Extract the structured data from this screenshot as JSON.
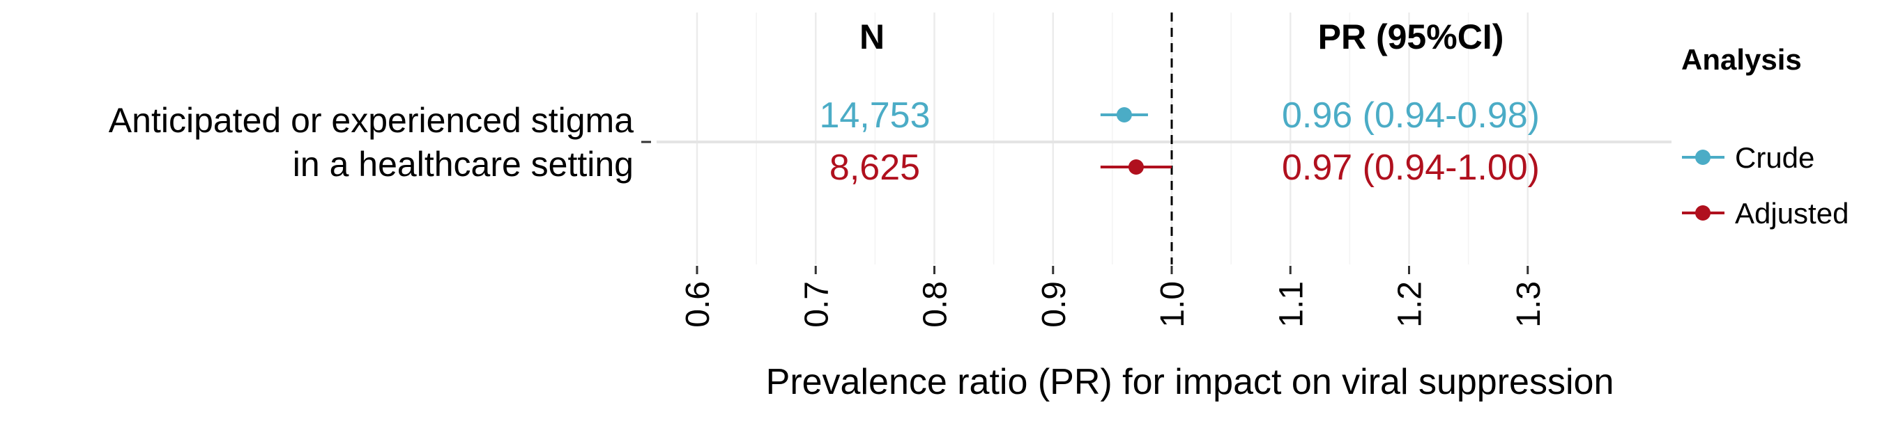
{
  "chart_data": {
    "type": "forest",
    "xlabel": "Prevalence ratio (PR) for impact on viral suppression",
    "xlim": [
      0.55,
      1.38
    ],
    "x_ticks": [
      0.6,
      0.7,
      0.8,
      0.9,
      1.0,
      1.1,
      1.2,
      1.3
    ],
    "x_tick_labels": [
      "0.6",
      "0.7",
      "0.8",
      "0.9",
      "1.0",
      "1.1",
      "1.2",
      "1.3"
    ],
    "reference_line": 1.0,
    "grid": true,
    "column_headers": {
      "n": "N",
      "pr": "PR (95%CI)"
    },
    "row_label_lines": [
      "Anticipated or experienced stigma",
      "in a healthcare setting"
    ],
    "legend": {
      "title": "Analysis",
      "position": "right"
    },
    "series": [
      {
        "name": "Crude",
        "color": "#4bacc6",
        "pr": 0.96,
        "ci_low": 0.94,
        "ci_high": 0.98,
        "n_label": "14,753",
        "pr_label": "0.96 (0.94-0.98)"
      },
      {
        "name": "Adjusted",
        "color": "#b0101e",
        "pr": 0.97,
        "ci_low": 0.94,
        "ci_high": 1.0,
        "n_label": "8,625",
        "pr_label": "0.97 (0.94-1.00)"
      }
    ]
  }
}
